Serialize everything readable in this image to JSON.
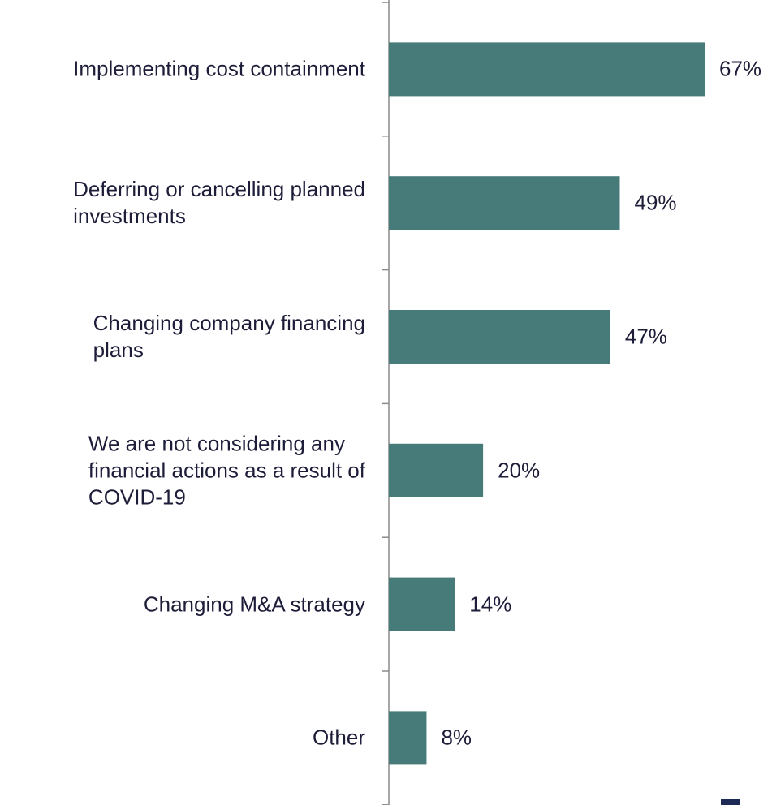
{
  "chart_data": {
    "type": "barh",
    "categories": [
      "Implementing cost containment",
      "Deferring or cancelling planned\ninvestments",
      "Changing company financing\nplans",
      "We are not considering any\nfinancial actions as a result of\nCOVID-19",
      "Changing M&A strategy",
      "Other"
    ],
    "values": [
      67,
      49,
      47,
      20,
      14,
      8
    ],
    "value_labels": [
      "67%",
      "49%",
      "47%",
      "20%",
      "14%",
      "8%"
    ],
    "color": "#467b79"
  }
}
